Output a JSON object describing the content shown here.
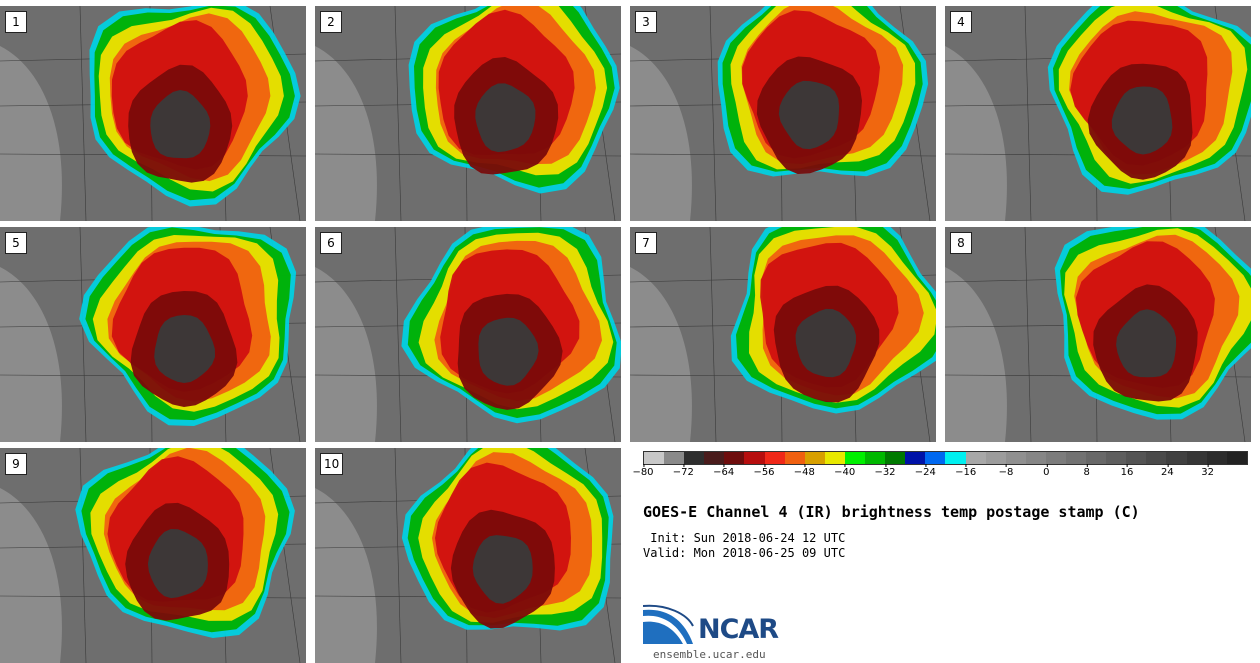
{
  "panels": [
    {
      "label": "1"
    },
    {
      "label": "2"
    },
    {
      "label": "3"
    },
    {
      "label": "4"
    },
    {
      "label": "5"
    },
    {
      "label": "6"
    },
    {
      "label": "7"
    },
    {
      "label": "8"
    },
    {
      "label": "9"
    },
    {
      "label": "10"
    }
  ],
  "colorbar": {
    "colors": [
      "#c8c8c8",
      "#8a8a8a",
      "#2e2e2e",
      "#4a1c1c",
      "#6e0d0d",
      "#b70e0e",
      "#f02818",
      "#f06010",
      "#d8a000",
      "#e8e800",
      "#00f000",
      "#00b800",
      "#007a00",
      "#0012a8",
      "#0068f0",
      "#00f0f0",
      "#a8a8a8",
      "#9c9c9c",
      "#909090",
      "#868686",
      "#7c7c7c",
      "#727272",
      "#686868",
      "#5e5e5e",
      "#545454",
      "#4a4a4a",
      "#404040",
      "#363636",
      "#2c2c2c",
      "#222222"
    ],
    "tick_labels": [
      "−80",
      "−72",
      "−64",
      "−56",
      "−48",
      "−40",
      "−32",
      "−24",
      "−16",
      "−8",
      "0",
      "8",
      "16",
      "24",
      "32"
    ]
  },
  "title": "GOES-E Channel 4 (IR) brightness temp postage stamp (C)",
  "init_line": " Init: Sun 2018-06-24 12 UTC",
  "valid_line": "Valid: Mon 2018-06-25 09 UTC",
  "logo": {
    "name": "NCAR",
    "url": "ensemble.ucar.edu"
  }
}
